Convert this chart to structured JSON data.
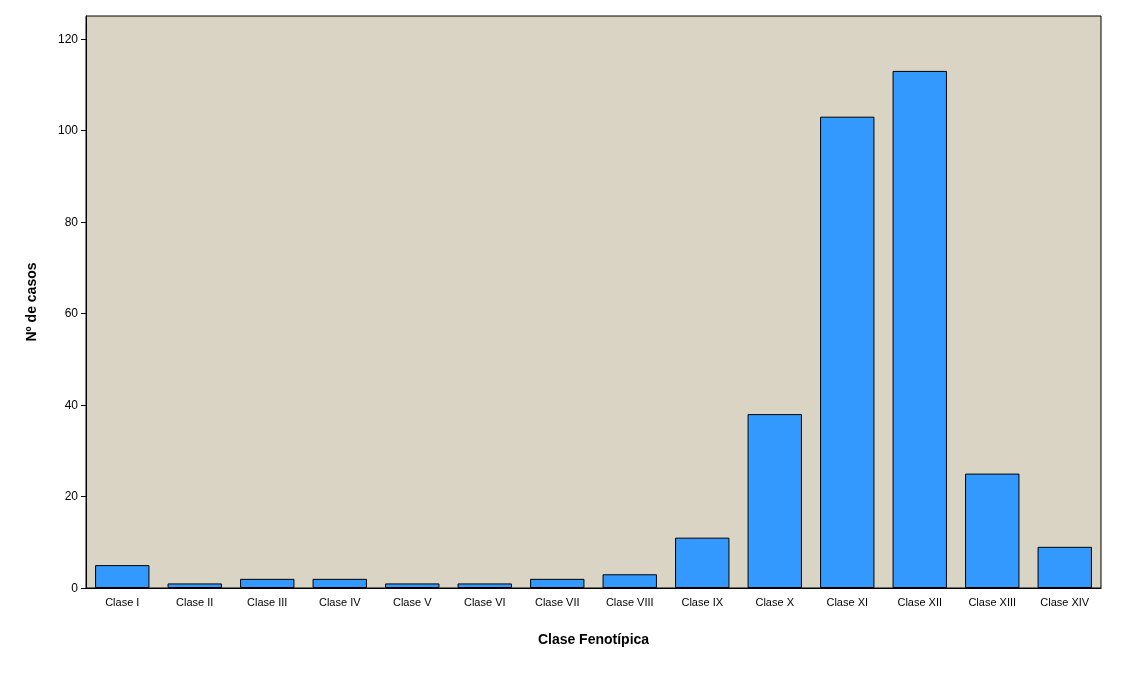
{
  "chart_data": {
    "type": "bar",
    "xlabel": "Clase Fenotípica",
    "ylabel": "Nº de casos",
    "categories": [
      "Clase I",
      "Clase II",
      "Clase III",
      "Clase IV",
      "Clase V",
      "Clase VI",
      "Clase VII",
      "Clase VIII",
      "Clase IX",
      "Clase X",
      "Clase XI",
      "Clase XII",
      "Clase XIII",
      "Clase XIV"
    ],
    "values": [
      5,
      1,
      2,
      2,
      1,
      1,
      2,
      3,
      11,
      38,
      103,
      113,
      25,
      9
    ],
    "color": "#3399ff",
    "ylim": [
      0,
      125
    ],
    "yticks": [
      0,
      20,
      40,
      60,
      80,
      100,
      120
    ],
    "grid": false
  }
}
